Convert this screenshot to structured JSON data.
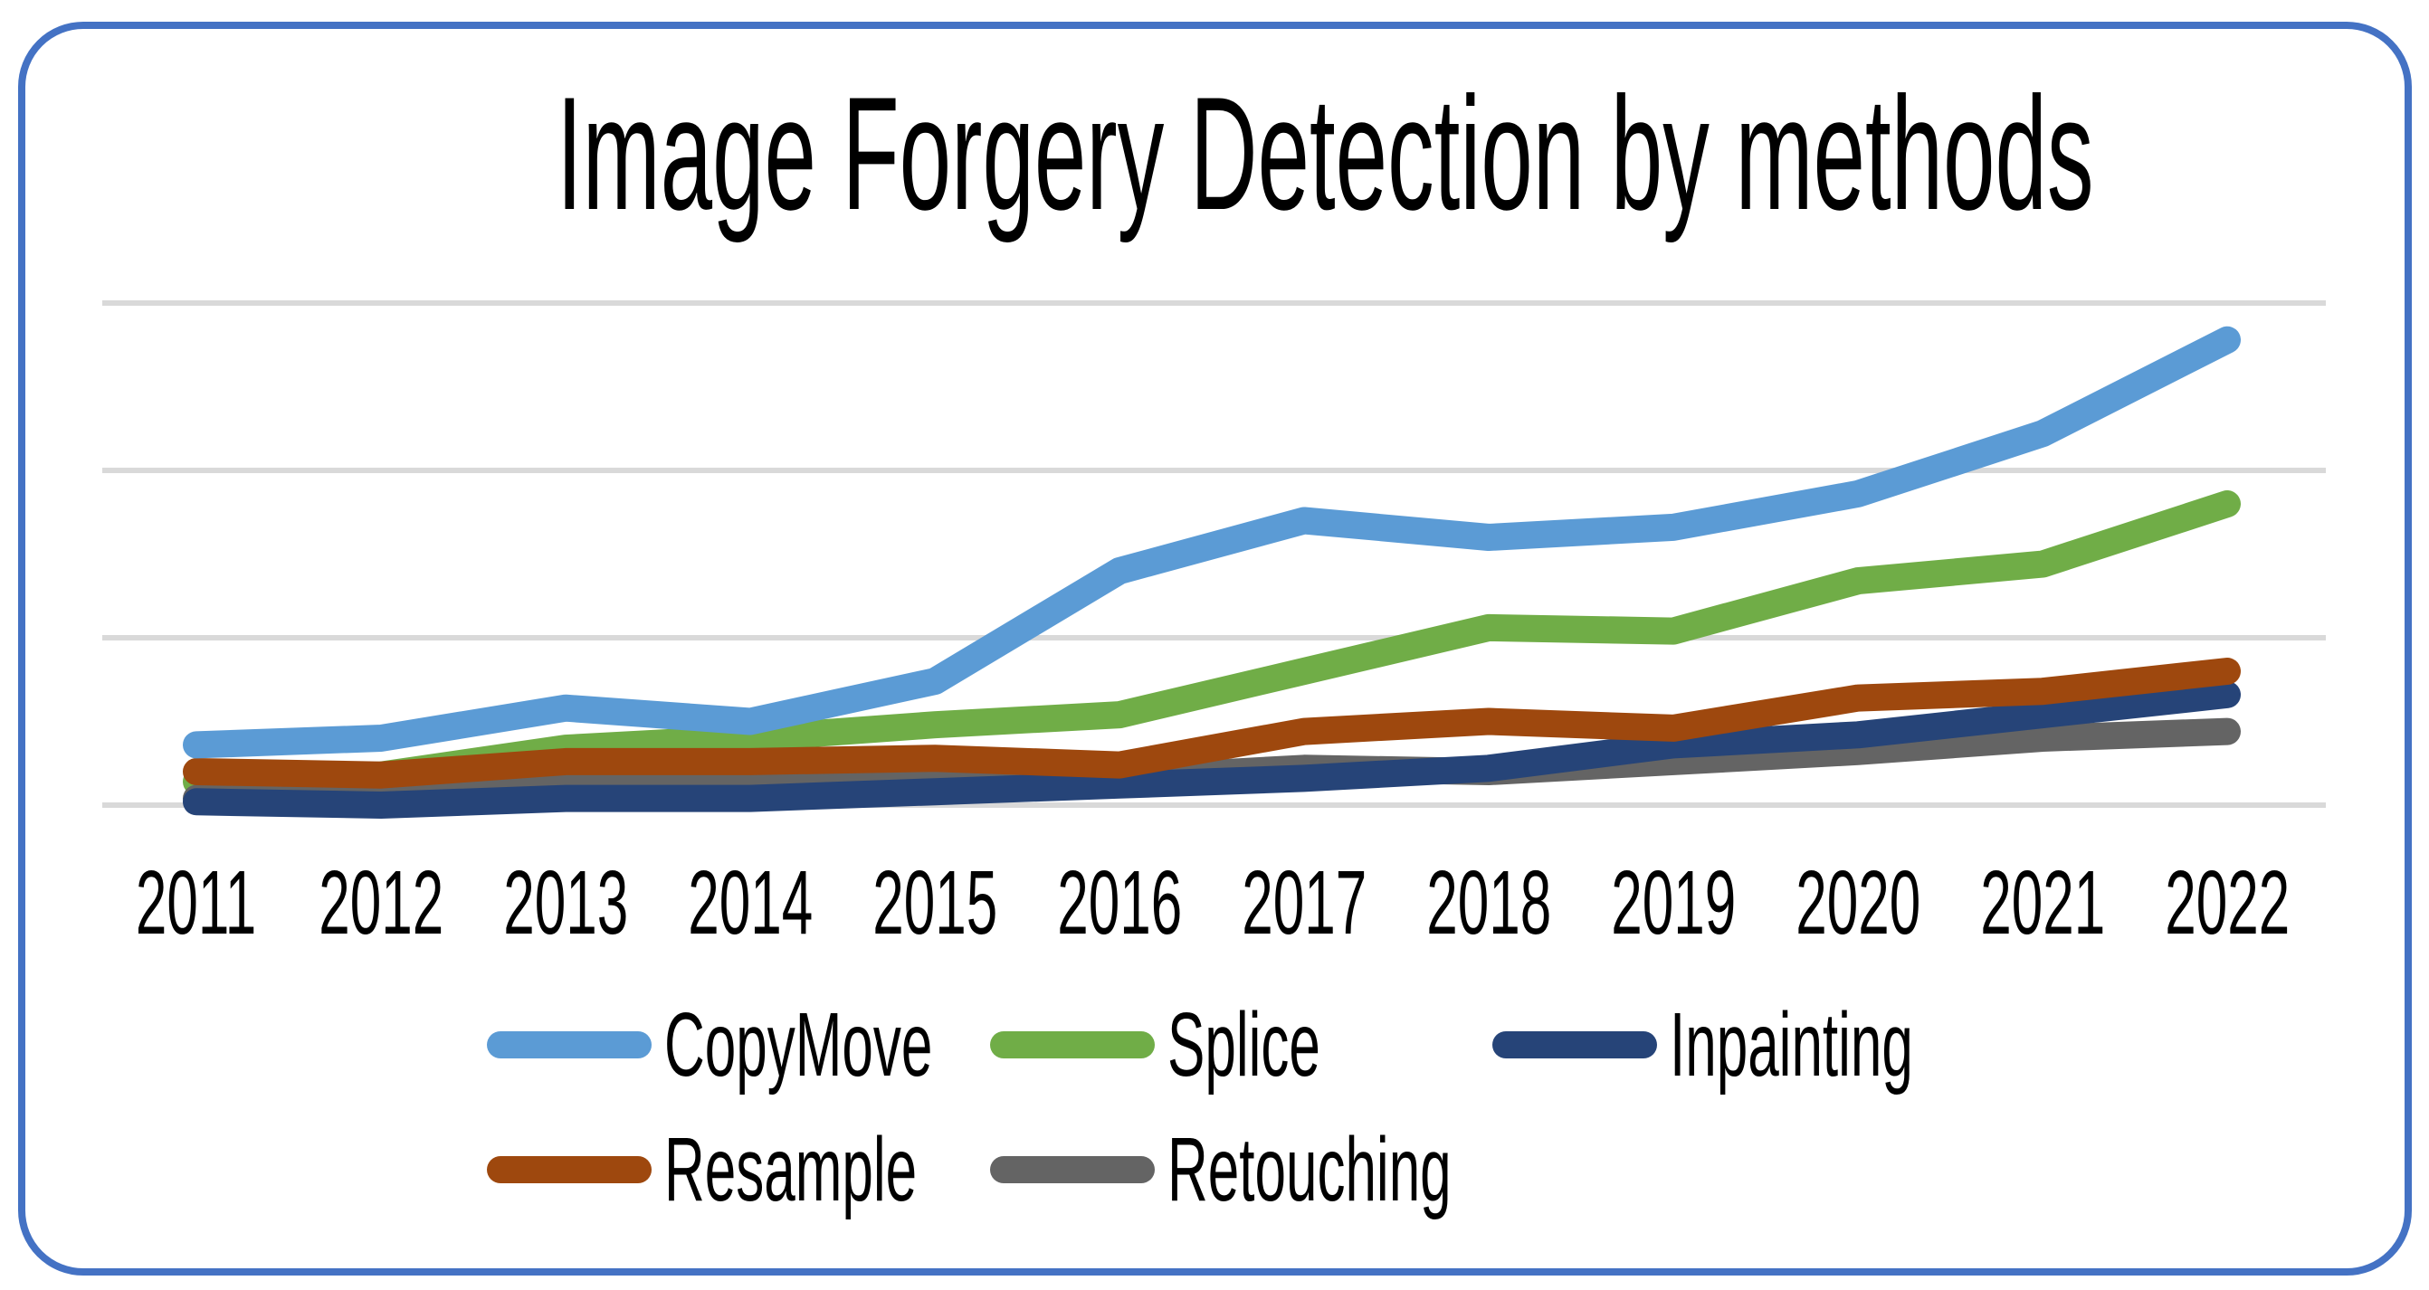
{
  "frame": {
    "border_color": "#4472C4"
  },
  "chart_data": {
    "type": "line",
    "title": "Image Forgery Detection by methods",
    "xlabel": "",
    "ylabel": "",
    "categories": [
      "2011",
      "2012",
      "2013",
      "2014",
      "2015",
      "2016",
      "2017",
      "2018",
      "2019",
      "2020",
      "2021",
      "2022"
    ],
    "series": [
      {
        "name": "CopyMove",
        "color": "#5B9BD5",
        "values": [
          18,
          20,
          29,
          25,
          37,
          70,
          85,
          80,
          83,
          93,
          111,
          139
        ]
      },
      {
        "name": "Splice",
        "color": "#70AD47",
        "values": [
          7,
          9,
          17,
          20,
          24,
          27,
          40,
          53,
          52,
          67,
          72,
          90
        ]
      },
      {
        "name": "Inpainting",
        "color": "#264478",
        "values": [
          1,
          0,
          2,
          2,
          4,
          6,
          8,
          11,
          18,
          21,
          27,
          33
        ]
      },
      {
        "name": "Resample",
        "color": "#9E480E",
        "values": [
          10,
          9,
          13,
          13,
          14,
          12,
          22,
          25,
          23,
          32,
          34,
          40
        ]
      },
      {
        "name": "Retouching",
        "color": "#646464",
        "values": [
          2,
          1,
          6,
          6,
          7,
          8,
          11,
          10,
          13,
          16,
          20,
          22
        ]
      }
    ],
    "draw_order": [
      "Splice",
      "Retouching",
      "Inpainting",
      "Resample",
      "CopyMove"
    ],
    "ylim": [
      0,
      150
    ],
    "gridline_values": [
      0,
      50,
      100,
      150
    ],
    "y_axis_tick_labels": [],
    "grid_color": "#D9D9D9",
    "grid_visible": true,
    "legend_position": "bottom",
    "legend_rows": [
      [
        "CopyMove",
        "Splice",
        "Inpainting"
      ],
      [
        "Resample",
        "Retouching"
      ]
    ]
  }
}
